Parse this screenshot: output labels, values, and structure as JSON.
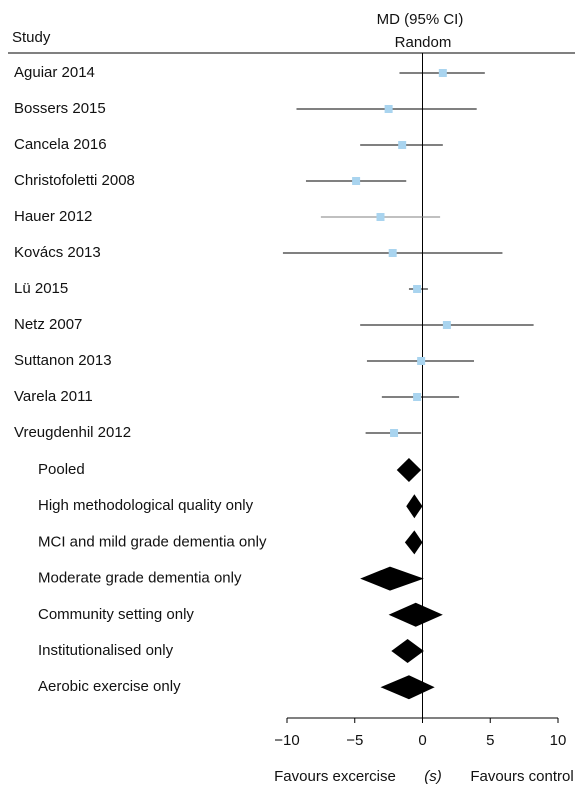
{
  "chart_data": {
    "type": "forest",
    "column_header": "Study",
    "effect_header": "MD (95% CI)",
    "model_header": "Random",
    "categories": [
      "Aguiar 2014",
      "Bossers 2015",
      "Cancela 2016",
      "Christofoletti 2008",
      "Hauer 2012",
      "Kovács 2013",
      "Lü 2015",
      "Netz 2007",
      "Suttanon 2013",
      "Varela 2011",
      "Vreugdenhil 2012"
    ],
    "values": [
      1.5,
      -2.5,
      -1.5,
      -4.9,
      -3.1,
      -2.2,
      -0.4,
      1.8,
      -0.1,
      -0.4,
      -2.1
    ],
    "ci_low": [
      -1.7,
      -9.3,
      -4.6,
      -8.6,
      -7.5,
      -10.3,
      -1.0,
      -4.6,
      -4.1,
      -3.0,
      -4.2
    ],
    "ci_high": [
      4.6,
      4.0,
      1.5,
      -1.2,
      1.3,
      5.9,
      0.4,
      8.2,
      3.8,
      2.7,
      -0.1
    ],
    "ci_colors": [
      "#000000",
      "#000000",
      "#000000",
      "#000000",
      "#808080",
      "#000000",
      "#000000",
      "#000000",
      "#000000",
      "#000000",
      "#000000"
    ],
    "marker_color": "#a9d4ef",
    "pooled": {
      "categories": [
        "Pooled",
        "High methodological quality only",
        "MCI and mild grade dementia only",
        "Moderate grade dementia only",
        "Community setting only",
        "Institutionalised only",
        "Aerobic exercise only"
      ],
      "values": [
        -1.0,
        -0.6,
        -0.6,
        -2.4,
        -0.5,
        -1.1,
        -1.0
      ],
      "ci_low": [
        -1.9,
        -1.2,
        -1.3,
        -4.6,
        -2.5,
        -2.3,
        -3.1
      ],
      "ci_high": [
        -0.1,
        0.0,
        0.0,
        0.1,
        1.5,
        0.1,
        0.9
      ],
      "color": "#000000"
    },
    "xlim": [
      -10,
      10
    ],
    "xticks": [
      {
        "value": -10,
        "label": "−10"
      },
      {
        "value": -5,
        "label": "−5"
      },
      0,
      5,
      10
    ],
    "xlabel_left": "Favours excercise",
    "xlabel_unit": "(s)",
    "xlabel_right": "Favours control"
  }
}
